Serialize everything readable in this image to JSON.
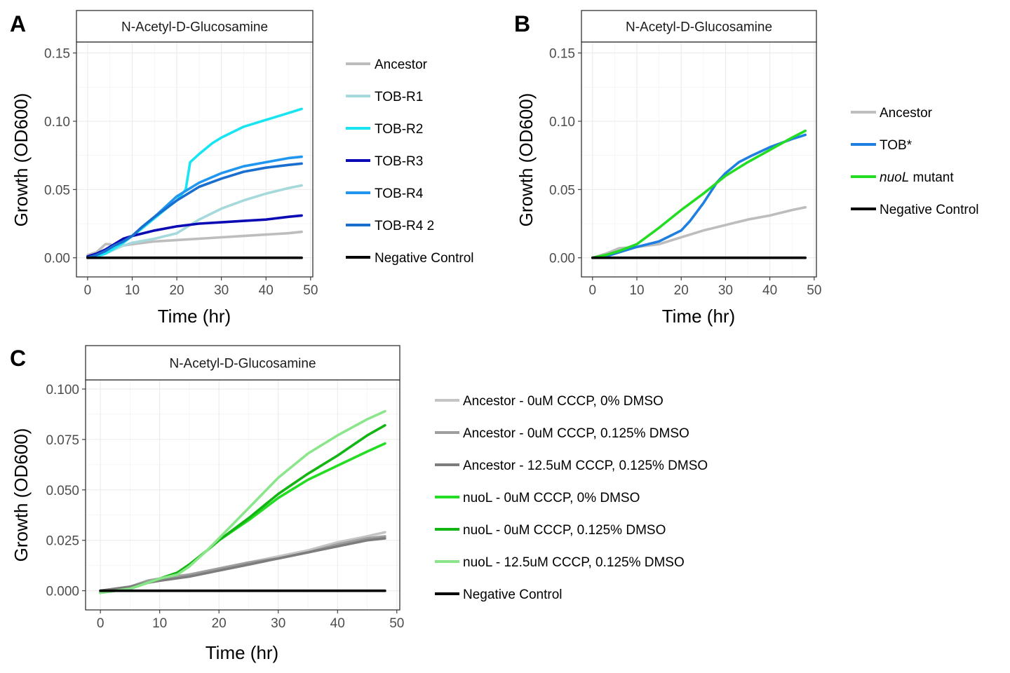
{
  "chart_data": [
    {
      "panel": "A",
      "type": "line",
      "strip": "N-Acetyl-D-Glucosamine",
      "xlabel": "Time (hr)",
      "ylabel": "Growth (OD600)",
      "xlim": [
        -2.5,
        50.5
      ],
      "ylim": [
        -0.014,
        0.158
      ],
      "xticks": [
        0,
        10,
        20,
        30,
        40,
        50
      ],
      "xtick_labels": [
        "0",
        "10",
        "20",
        "30",
        "40",
        "50"
      ],
      "yticks": [
        0,
        0.05,
        0.1,
        0.15
      ],
      "ytick_labels": [
        "0.00",
        "0.05",
        "0.10",
        "0.15"
      ],
      "grid": true,
      "legend_position": "right",
      "series": [
        {
          "name": "Ancestor",
          "color": "#bdbdbd",
          "x": [
            0,
            2,
            4,
            5,
            6,
            8,
            10,
            15,
            20,
            25,
            30,
            35,
            40,
            45,
            48
          ],
          "y": [
            0.002,
            0.004,
            0.01,
            0.01,
            0.008,
            0.009,
            0.01,
            0.012,
            0.013,
            0.014,
            0.015,
            0.016,
            0.017,
            0.018,
            0.019
          ]
        },
        {
          "name": "TOB-R1",
          "color": "#a6d9dc",
          "x": [
            0,
            2,
            4,
            6,
            8,
            10,
            15,
            20,
            25,
            30,
            35,
            40,
            45,
            48
          ],
          "y": [
            0,
            0.001,
            0.003,
            0.006,
            0.009,
            0.011,
            0.014,
            0.018,
            0.028,
            0.036,
            0.042,
            0.047,
            0.051,
            0.053
          ]
        },
        {
          "name": "TOB-R2",
          "color": "#19e4f2",
          "x": [
            0,
            2,
            4,
            6,
            8,
            10,
            12,
            15,
            18,
            20,
            22,
            23,
            25,
            28,
            30,
            35,
            40,
            45,
            48
          ],
          "y": [
            0,
            0.001,
            0.003,
            0.007,
            0.011,
            0.016,
            0.021,
            0.029,
            0.037,
            0.042,
            0.05,
            0.07,
            0.076,
            0.084,
            0.088,
            0.096,
            0.101,
            0.106,
            0.109
          ]
        },
        {
          "name": "TOB-R3",
          "color": "#0a0ab4",
          "x": [
            0,
            2,
            4,
            6,
            8,
            10,
            15,
            20,
            25,
            30,
            35,
            40,
            45,
            48
          ],
          "y": [
            0.001,
            0.003,
            0.006,
            0.01,
            0.014,
            0.016,
            0.02,
            0.023,
            0.025,
            0.026,
            0.027,
            0.028,
            0.03,
            0.031
          ]
        },
        {
          "name": "TOB-R4",
          "color": "#2196f0",
          "x": [
            0,
            2,
            4,
            6,
            8,
            10,
            12,
            15,
            20,
            25,
            30,
            35,
            40,
            45,
            48
          ],
          "y": [
            0,
            0.002,
            0.005,
            0.009,
            0.012,
            0.016,
            0.022,
            0.03,
            0.045,
            0.055,
            0.062,
            0.067,
            0.07,
            0.073,
            0.074
          ]
        },
        {
          "name": "TOB-R4 2",
          "color": "#1a6ed0",
          "x": [
            0,
            2,
            4,
            6,
            8,
            10,
            12,
            15,
            20,
            25,
            30,
            35,
            40,
            45,
            48
          ],
          "y": [
            0,
            0.002,
            0.005,
            0.009,
            0.012,
            0.016,
            0.022,
            0.03,
            0.042,
            0.052,
            0.058,
            0.063,
            0.066,
            0.068,
            0.069
          ]
        },
        {
          "name": "Negative Control",
          "color": "#000000",
          "x": [
            0,
            48
          ],
          "y": [
            0,
            0
          ]
        }
      ]
    },
    {
      "panel": "B",
      "type": "line",
      "strip": "N-Acetyl-D-Glucosamine",
      "xlabel": "Time (hr)",
      "ylabel": "Growth (OD600)",
      "xlim": [
        -2.5,
        50.5
      ],
      "ylim": [
        -0.014,
        0.158
      ],
      "xticks": [
        0,
        10,
        20,
        30,
        40,
        50
      ],
      "xtick_labels": [
        "0",
        "10",
        "20",
        "30",
        "40",
        "50"
      ],
      "yticks": [
        0,
        0.05,
        0.1,
        0.15
      ],
      "ytick_labels": [
        "0.00",
        "0.05",
        "0.10",
        "0.15"
      ],
      "grid": true,
      "legend_position": "right",
      "series": [
        {
          "name": "Ancestor",
          "color": "#bdbdbd",
          "x": [
            0,
            3,
            6,
            10,
            15,
            20,
            25,
            30,
            35,
            40,
            45,
            48
          ],
          "y": [
            0,
            0.003,
            0.007,
            0.008,
            0.01,
            0.015,
            0.02,
            0.024,
            0.028,
            0.031,
            0.035,
            0.037
          ]
        },
        {
          "name": "TOB*",
          "color": "#1f7fe0",
          "x": [
            0,
            3,
            6,
            10,
            15,
            20,
            22,
            25,
            28,
            30,
            33,
            36,
            40,
            45,
            48
          ],
          "y": [
            0,
            0.001,
            0.004,
            0.008,
            0.012,
            0.02,
            0.027,
            0.04,
            0.055,
            0.062,
            0.07,
            0.075,
            0.081,
            0.087,
            0.09
          ]
        },
        {
          "name": "nuoL mutant",
          "color": "#22dd22",
          "x": [
            0,
            3,
            6,
            10,
            15,
            20,
            25,
            30,
            35,
            40,
            45,
            48
          ],
          "y": [
            0,
            0.002,
            0.005,
            0.01,
            0.022,
            0.035,
            0.047,
            0.06,
            0.07,
            0.079,
            0.088,
            0.093
          ]
        },
        {
          "name": "Negative Control",
          "color": "#000000",
          "x": [
            0,
            48
          ],
          "y": [
            0,
            0
          ]
        }
      ]
    },
    {
      "panel": "C",
      "type": "line",
      "strip": "N-Acetyl-D-Glucosamine",
      "xlabel": "Time (hr)",
      "ylabel": "Growth (OD600)",
      "xlim": [
        -2.5,
        50.5
      ],
      "ylim": [
        -0.0095,
        0.1045
      ],
      "xticks": [
        0,
        10,
        20,
        30,
        40,
        50
      ],
      "xtick_labels": [
        "0",
        "10",
        "20",
        "30",
        "40",
        "50"
      ],
      "yticks": [
        0,
        0.025,
        0.05,
        0.075,
        0.1
      ],
      "ytick_labels": [
        "0.000",
        "0.025",
        "0.050",
        "0.075",
        "0.100"
      ],
      "grid": true,
      "legend_position": "right",
      "series": [
        {
          "name": "Ancestor - 0uM CCCP, 0% DMSO",
          "color": "#c4c4c4",
          "x": [
            0,
            5,
            8,
            10,
            15,
            20,
            25,
            30,
            35,
            40,
            45,
            48
          ],
          "y": [
            0,
            0.002,
            0.005,
            0.006,
            0.008,
            0.011,
            0.014,
            0.017,
            0.02,
            0.024,
            0.027,
            0.029
          ]
        },
        {
          "name": "Ancestor - 0uM CCCP, 0.125% DMSO",
          "color": "#9e9e9e",
          "x": [
            0,
            5,
            8,
            10,
            15,
            20,
            25,
            30,
            35,
            40,
            45,
            48
          ],
          "y": [
            0,
            0.002,
            0.005,
            0.006,
            0.008,
            0.011,
            0.014,
            0.016,
            0.019,
            0.023,
            0.026,
            0.027
          ]
        },
        {
          "name": "Ancestor - 12.5uM CCCP, 0.125% DMSO",
          "color": "#7d7d7d",
          "x": [
            0,
            5,
            8,
            10,
            15,
            20,
            25,
            30,
            35,
            40,
            45,
            48
          ],
          "y": [
            0,
            0.002,
            0.004,
            0.005,
            0.007,
            0.01,
            0.013,
            0.016,
            0.019,
            0.022,
            0.025,
            0.026
          ]
        },
        {
          "name": "nuoL - 0uM CCCP, 0% DMSO",
          "color": "#22dd22",
          "x": [
            0,
            5,
            8,
            10,
            13,
            15,
            18,
            20,
            25,
            30,
            35,
            40,
            45,
            48
          ],
          "y": [
            -0.001,
            0.001,
            0.004,
            0.006,
            0.009,
            0.013,
            0.02,
            0.025,
            0.035,
            0.046,
            0.055,
            0.062,
            0.069,
            0.073
          ]
        },
        {
          "name": "nuoL - 0uM CCCP, 0.125% DMSO",
          "color": "#12b512",
          "x": [
            0,
            5,
            8,
            10,
            13,
            15,
            18,
            20,
            25,
            30,
            35,
            40,
            45,
            48
          ],
          "y": [
            -0.001,
            0.001,
            0.004,
            0.006,
            0.009,
            0.013,
            0.02,
            0.025,
            0.036,
            0.048,
            0.058,
            0.067,
            0.077,
            0.082
          ]
        },
        {
          "name": "nuoL - 12.5uM CCCP, 0.125% DMSO",
          "color": "#8be68b",
          "x": [
            0,
            5,
            8,
            10,
            13,
            15,
            18,
            20,
            25,
            30,
            35,
            40,
            45,
            48
          ],
          "y": [
            -0.001,
            0.001,
            0.004,
            0.006,
            0.008,
            0.012,
            0.02,
            0.026,
            0.041,
            0.056,
            0.068,
            0.077,
            0.085,
            0.089
          ]
        },
        {
          "name": "Negative Control",
          "color": "#000000",
          "x": [
            0,
            48
          ],
          "y": [
            0,
            0
          ]
        }
      ]
    }
  ]
}
